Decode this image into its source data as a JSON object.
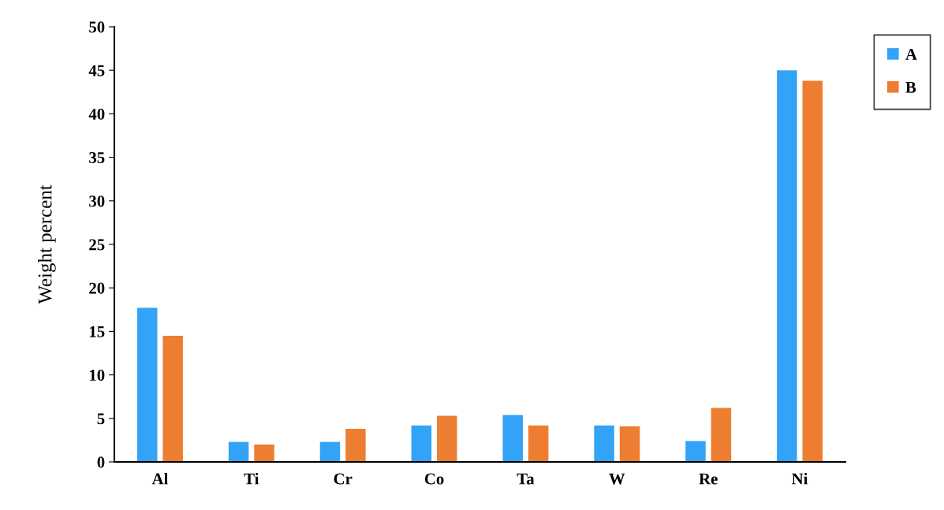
{
  "chart_data": {
    "type": "bar",
    "ylabel": "Weight percent",
    "categories": [
      "Al",
      "Ti",
      "Cr",
      "Co",
      "Ta",
      "W",
      "Re",
      "Ni"
    ],
    "series": [
      {
        "name": "A",
        "color": "#33a3f7",
        "values": [
          17.7,
          2.3,
          2.3,
          4.2,
          5.4,
          4.2,
          2.4,
          45.0
        ]
      },
      {
        "name": "B",
        "color": "#ed7d31",
        "values": [
          14.5,
          2.0,
          3.8,
          5.3,
          4.2,
          4.1,
          6.2,
          43.8
        ]
      }
    ],
    "ylim": [
      0,
      50
    ],
    "yticks": [
      0,
      5,
      10,
      15,
      20,
      25,
      30,
      35,
      40,
      45,
      50
    ],
    "grid": false,
    "legend": "top right"
  }
}
